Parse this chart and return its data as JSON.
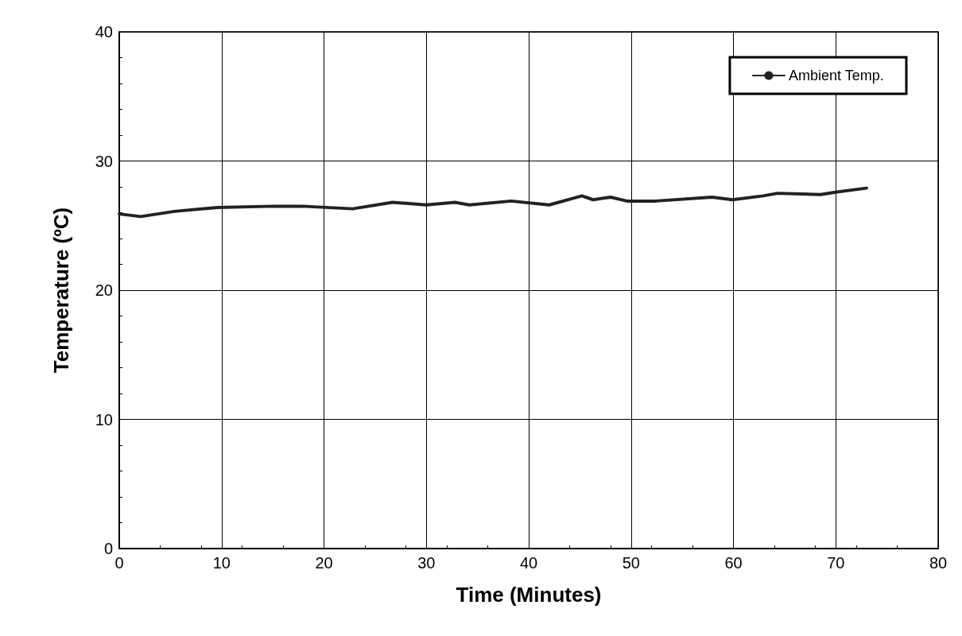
{
  "chart_data": {
    "type": "line",
    "xlabel": "Time (Minutes)",
    "ylabel": "Temperature (ºC)",
    "xlim": [
      0,
      80
    ],
    "xticks": [
      0,
      10,
      20,
      30,
      40,
      50,
      60,
      70,
      80
    ],
    "ylim": [
      0,
      40
    ],
    "yticks": [
      0,
      10,
      20,
      30,
      40
    ],
    "grid": true,
    "legend": "top right",
    "marker": "none",
    "line_style": "solid",
    "series": [
      {
        "name": "Ambient Temp.",
        "color": "#222222",
        "x": [
          0,
          2.1,
          5.4,
          9.6,
          15.1,
          17.9,
          22.8,
          26.7,
          30,
          32.8,
          34.2,
          38.3,
          42,
          45.2,
          46.3,
          48,
          49.6,
          52.4,
          57.9,
          59.9,
          62.9,
          64.3,
          68.5,
          70.1,
          73
        ],
        "values": [
          25.9,
          25.7,
          26.1,
          26.4,
          26.5,
          26.5,
          26.3,
          26.8,
          26.6,
          26.8,
          26.6,
          26.9,
          26.6,
          27.3,
          27,
          27.2,
          26.9,
          26.9,
          27.2,
          27,
          27.3,
          27.5,
          27.4,
          27.6,
          27.9
        ]
      }
    ]
  }
}
